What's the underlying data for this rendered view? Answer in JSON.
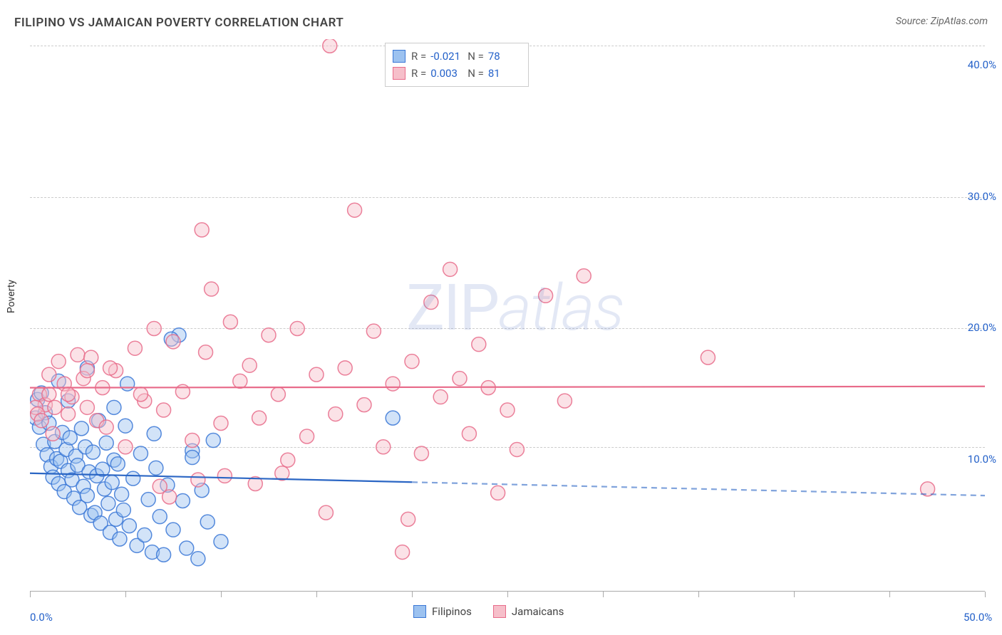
{
  "title": "FILIPINO VS JAMAICAN POVERTY CORRELATION CHART",
  "source_prefix": "Source: ",
  "source_name": "ZipAtlas.com",
  "y_axis_label": "Poverty",
  "watermark_main": "ZIP",
  "watermark_italic": "atlas",
  "chart": {
    "type": "scatter",
    "xlim": [
      0,
      50
    ],
    "ylim": [
      0,
      42
    ],
    "x_ticks": [
      0,
      5,
      10,
      15,
      20,
      25,
      30,
      35,
      40,
      45,
      50
    ],
    "x_tick_labels": {
      "0": "0.0%",
      "50": "50.0%"
    },
    "y_ticks": [
      10,
      20,
      30,
      40
    ],
    "y_tick_labels": {
      "10": "10.0%",
      "20": "20.0%",
      "30": "30.0%",
      "40": "40.0%"
    },
    "y_grid": [
      11,
      20,
      30,
      41.5
    ],
    "background_color": "#ffffff",
    "grid_color": "#cccccc",
    "axis_color": "#aaaaaa",
    "tick_label_color": "#2461c9",
    "marker_radius": 10,
    "marker_opacity": 0.45,
    "marker_stroke_opacity": 0.85,
    "series": [
      {
        "name": "Filipinos",
        "fill": "#9cc2f0",
        "stroke": "#3a77d6",
        "R": "-0.021",
        "N": "78",
        "trend": {
          "y_start": 9.0,
          "y_end": 7.3,
          "solid_until_x": 20,
          "color": "#2b66c4",
          "dash": "8,6",
          "width": 2.2
        },
        "points": [
          [
            0.3,
            13.2
          ],
          [
            0.4,
            14.6
          ],
          [
            0.5,
            12.5
          ],
          [
            0.6,
            15.1
          ],
          [
            0.7,
            11.2
          ],
          [
            0.8,
            13.6
          ],
          [
            0.9,
            10.4
          ],
          [
            1.0,
            12.8
          ],
          [
            1.1,
            9.5
          ],
          [
            1.2,
            8.7
          ],
          [
            1.3,
            11.4
          ],
          [
            1.4,
            10.1
          ],
          [
            1.5,
            8.2
          ],
          [
            1.6,
            9.9
          ],
          [
            1.7,
            12.1
          ],
          [
            1.8,
            7.6
          ],
          [
            1.9,
            10.8
          ],
          [
            2.0,
            9.2
          ],
          [
            2.1,
            11.7
          ],
          [
            2.2,
            8.5
          ],
          [
            2.3,
            7.1
          ],
          [
            2.4,
            10.3
          ],
          [
            2.5,
            9.6
          ],
          [
            2.6,
            6.4
          ],
          [
            2.7,
            12.4
          ],
          [
            2.8,
            8.0
          ],
          [
            2.9,
            11.0
          ],
          [
            3.0,
            7.3
          ],
          [
            3.1,
            9.1
          ],
          [
            3.2,
            5.8
          ],
          [
            3.3,
            10.6
          ],
          [
            3.4,
            6.0
          ],
          [
            3.5,
            8.8
          ],
          [
            3.6,
            13.0
          ],
          [
            3.7,
            5.2
          ],
          [
            3.8,
            9.3
          ],
          [
            3.9,
            7.8
          ],
          [
            4.0,
            11.3
          ],
          [
            4.1,
            6.7
          ],
          [
            4.2,
            4.5
          ],
          [
            4.3,
            8.3
          ],
          [
            4.4,
            10.0
          ],
          [
            4.5,
            5.5
          ],
          [
            4.6,
            9.7
          ],
          [
            4.7,
            4.0
          ],
          [
            4.8,
            7.4
          ],
          [
            4.9,
            6.2
          ],
          [
            5.0,
            12.6
          ],
          [
            5.2,
            5.0
          ],
          [
            5.4,
            8.6
          ],
          [
            5.6,
            3.5
          ],
          [
            5.8,
            10.5
          ],
          [
            6.0,
            4.3
          ],
          [
            6.2,
            7.0
          ],
          [
            6.4,
            3.0
          ],
          [
            6.6,
            9.4
          ],
          [
            6.8,
            5.7
          ],
          [
            7.0,
            2.8
          ],
          [
            7.2,
            8.1
          ],
          [
            7.5,
            4.7
          ],
          [
            7.8,
            19.5
          ],
          [
            8.0,
            6.9
          ],
          [
            8.2,
            3.3
          ],
          [
            8.5,
            10.7
          ],
          [
            8.8,
            2.5
          ],
          [
            9.0,
            7.7
          ],
          [
            9.3,
            5.3
          ],
          [
            9.6,
            11.5
          ],
          [
            10.0,
            3.8
          ],
          [
            5.1,
            15.8
          ],
          [
            4.4,
            14.0
          ],
          [
            6.5,
            12.0
          ],
          [
            3.0,
            17.0
          ],
          [
            1.5,
            16.0
          ],
          [
            2.0,
            14.5
          ],
          [
            8.5,
            10.2
          ],
          [
            19.0,
            13.2
          ],
          [
            7.4,
            19.2
          ]
        ]
      },
      {
        "name": "Jamaicans",
        "fill": "#f6bfca",
        "stroke": "#e86b8a",
        "R": "0.003",
        "N": "81",
        "trend": {
          "y_start": 15.5,
          "y_end": 15.6,
          "solid_until_x": 50,
          "color": "#e86b8a",
          "dash": "",
          "width": 2.2
        },
        "points": [
          [
            0.5,
            15.0
          ],
          [
            0.8,
            14.2
          ],
          [
            1.0,
            16.5
          ],
          [
            1.2,
            12.0
          ],
          [
            1.5,
            17.5
          ],
          [
            1.8,
            15.8
          ],
          [
            2.0,
            13.5
          ],
          [
            2.2,
            14.8
          ],
          [
            2.5,
            18.0
          ],
          [
            2.8,
            16.2
          ],
          [
            3.0,
            14.0
          ],
          [
            3.2,
            17.8
          ],
          [
            3.5,
            13.0
          ],
          [
            3.8,
            15.5
          ],
          [
            4.0,
            12.5
          ],
          [
            4.5,
            16.8
          ],
          [
            5.0,
            11.0
          ],
          [
            5.5,
            18.5
          ],
          [
            6.0,
            14.5
          ],
          [
            6.5,
            20.0
          ],
          [
            7.0,
            13.8
          ],
          [
            7.5,
            19.0
          ],
          [
            8.0,
            15.2
          ],
          [
            8.5,
            11.5
          ],
          [
            9.0,
            27.5
          ],
          [
            9.2,
            18.2
          ],
          [
            9.5,
            23.0
          ],
          [
            10.0,
            12.8
          ],
          [
            10.5,
            20.5
          ],
          [
            11.0,
            16.0
          ],
          [
            11.5,
            17.2
          ],
          [
            12.0,
            13.2
          ],
          [
            12.5,
            19.5
          ],
          [
            13.0,
            15.0
          ],
          [
            13.5,
            10.0
          ],
          [
            14.0,
            20.0
          ],
          [
            14.5,
            11.8
          ],
          [
            15.0,
            16.5
          ],
          [
            15.5,
            6.0
          ],
          [
            15.7,
            41.5
          ],
          [
            16.0,
            13.5
          ],
          [
            16.5,
            17.0
          ],
          [
            17.0,
            29.0
          ],
          [
            17.5,
            14.2
          ],
          [
            18.0,
            19.8
          ],
          [
            18.5,
            11.0
          ],
          [
            19.0,
            15.8
          ],
          [
            19.5,
            3.0
          ],
          [
            19.8,
            5.5
          ],
          [
            20.0,
            17.5
          ],
          [
            20.5,
            10.5
          ],
          [
            21.0,
            22.0
          ],
          [
            21.5,
            14.8
          ],
          [
            22.0,
            24.5
          ],
          [
            22.5,
            16.2
          ],
          [
            23.0,
            12.0
          ],
          [
            23.5,
            18.8
          ],
          [
            24.0,
            15.5
          ],
          [
            24.5,
            7.5
          ],
          [
            25.0,
            13.8
          ],
          [
            25.5,
            10.8
          ],
          [
            27.0,
            22.5
          ],
          [
            28.0,
            14.5
          ],
          [
            29.0,
            24.0
          ],
          [
            35.5,
            17.8
          ],
          [
            47.0,
            7.8
          ],
          [
            3.0,
            16.8
          ],
          [
            4.2,
            17.0
          ],
          [
            5.8,
            15.0
          ],
          [
            6.8,
            8.0
          ],
          [
            7.3,
            7.2
          ],
          [
            8.8,
            8.5
          ],
          [
            10.2,
            8.8
          ],
          [
            11.8,
            8.2
          ],
          [
            13.2,
            9.0
          ],
          [
            2.0,
            15.0
          ],
          [
            0.3,
            14.0
          ],
          [
            0.4,
            13.5
          ],
          [
            0.6,
            13.0
          ],
          [
            1.0,
            15.0
          ],
          [
            1.3,
            14.0
          ]
        ]
      }
    ]
  },
  "corr_legend": {
    "R_label": "R =",
    "N_label": "N ="
  }
}
